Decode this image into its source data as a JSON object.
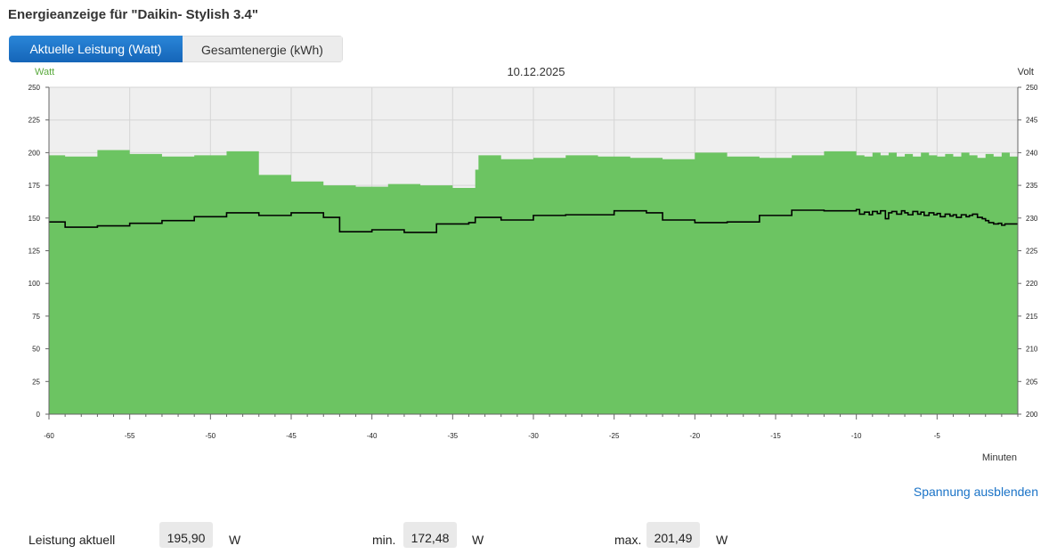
{
  "page": {
    "title": "Energieanzeige für \"Daikin- Stylish 3.4\""
  },
  "tabs": [
    {
      "label": "Aktuelle Leistung (Watt)",
      "active": true
    },
    {
      "label": "Gesamtenergie (kWh)",
      "active": false
    }
  ],
  "colors": {
    "power": "#6cc462",
    "voltage": "#000000",
    "plot_bg": "#efefef",
    "grid": "#d6d6d6"
  },
  "chart_data": {
    "type": "area",
    "title": "10.12.2025",
    "xlabel": "Minuten",
    "ylabel": "Watt",
    "y2label": "Volt",
    "xlim": [
      -60,
      0
    ],
    "ylim": [
      0,
      250
    ],
    "y2lim": [
      200,
      250
    ],
    "x_ticks": [
      -60,
      -55,
      -50,
      -45,
      -40,
      -35,
      -30,
      -25,
      -20,
      -15,
      -10,
      -5
    ],
    "y_ticks": [
      0,
      25,
      50,
      75,
      100,
      125,
      150,
      175,
      200,
      225,
      250
    ],
    "y2_ticks": [
      200,
      205,
      210,
      215,
      220,
      225,
      230,
      235,
      240,
      245,
      250
    ],
    "grid": true,
    "series": [
      {
        "name": "Leistung",
        "axis": "left",
        "style": "step-area",
        "x": [
          -60,
          -59,
          -57,
          -55,
          -53,
          -51,
          -49,
          -47,
          -46,
          -45,
          -43,
          -41,
          -39,
          -37,
          -35,
          -33.6,
          -33.4,
          -32,
          -30,
          -28,
          -26,
          -24,
          -22,
          -20,
          -18,
          -16,
          -14,
          -12,
          -10,
          -9.5,
          -9,
          -8.5,
          -8,
          -7.5,
          -7,
          -6.5,
          -6,
          -5.5,
          -5,
          -4.5,
          -4,
          -3.5,
          -3,
          -2.5,
          -2,
          -1.5,
          -1,
          -0.5
        ],
        "y": [
          198,
          197,
          202,
          199,
          197,
          198,
          201,
          183,
          183,
          178,
          175,
          174,
          176,
          175,
          173,
          187,
          198,
          195,
          196,
          198,
          197,
          196,
          195,
          200,
          197,
          196,
          198,
          201,
          198,
          197,
          200,
          198,
          200,
          197,
          199,
          197,
          200,
          198,
          197,
          199,
          197,
          200,
          198,
          196,
          199,
          197,
          200,
          197
        ]
      },
      {
        "name": "Spannung",
        "axis": "right",
        "style": "step-line",
        "x": [
          -60,
          -59,
          -57,
          -55,
          -53,
          -51,
          -49,
          -47,
          -45,
          -43,
          -42,
          -40,
          -38,
          -36,
          -34,
          -33.6,
          -32,
          -30,
          -28,
          -25,
          -23,
          -22,
          -20,
          -18,
          -16,
          -14,
          -12,
          -10,
          -9.8,
          -9.5,
          -9.2,
          -9,
          -8.7,
          -8.5,
          -8.2,
          -8,
          -7.8,
          -7.5,
          -7.2,
          -7,
          -6.8,
          -6.5,
          -6.2,
          -6,
          -5.8,
          -5.5,
          -5.2,
          -5,
          -4.8,
          -4.5,
          -4.2,
          -4,
          -3.8,
          -3.5,
          -3.2,
          -3,
          -2.8,
          -2.5,
          -2.2,
          -2,
          -1.8,
          -1.5,
          -1.2,
          -1,
          -0.8,
          -0.5
        ],
        "y": [
          229.4,
          228.6,
          228.8,
          229.2,
          229.6,
          230.2,
          230.8,
          230.4,
          230.8,
          230.1,
          227.9,
          228.2,
          227.8,
          229.1,
          229.3,
          230.1,
          229.7,
          230.4,
          230.5,
          231.1,
          230.8,
          229.7,
          229.3,
          229.4,
          230.4,
          231.2,
          231.1,
          231.3,
          230.6,
          230.9,
          230.5,
          231,
          230.7,
          231.1,
          229.9,
          230.8,
          231,
          230.6,
          231.1,
          230.8,
          230.5,
          231,
          230.6,
          230.9,
          230.4,
          230.8,
          230.5,
          230.7,
          230.2,
          230.6,
          230.3,
          230.5,
          230.1,
          230.5,
          230.2,
          230.4,
          230.6,
          230.1,
          229.9,
          229.6,
          229.3,
          229.1,
          229.2,
          228.9,
          229.1,
          229.1
        ]
      }
    ]
  },
  "toggle_link": "Spannung ausblenden",
  "stats": [
    {
      "label": "Leistung aktuell",
      "value": "195,90",
      "unit": "W"
    },
    {
      "label": "min.",
      "value": "172,48",
      "unit": "W"
    },
    {
      "label": "max.",
      "value": "201,49",
      "unit": "W"
    }
  ]
}
